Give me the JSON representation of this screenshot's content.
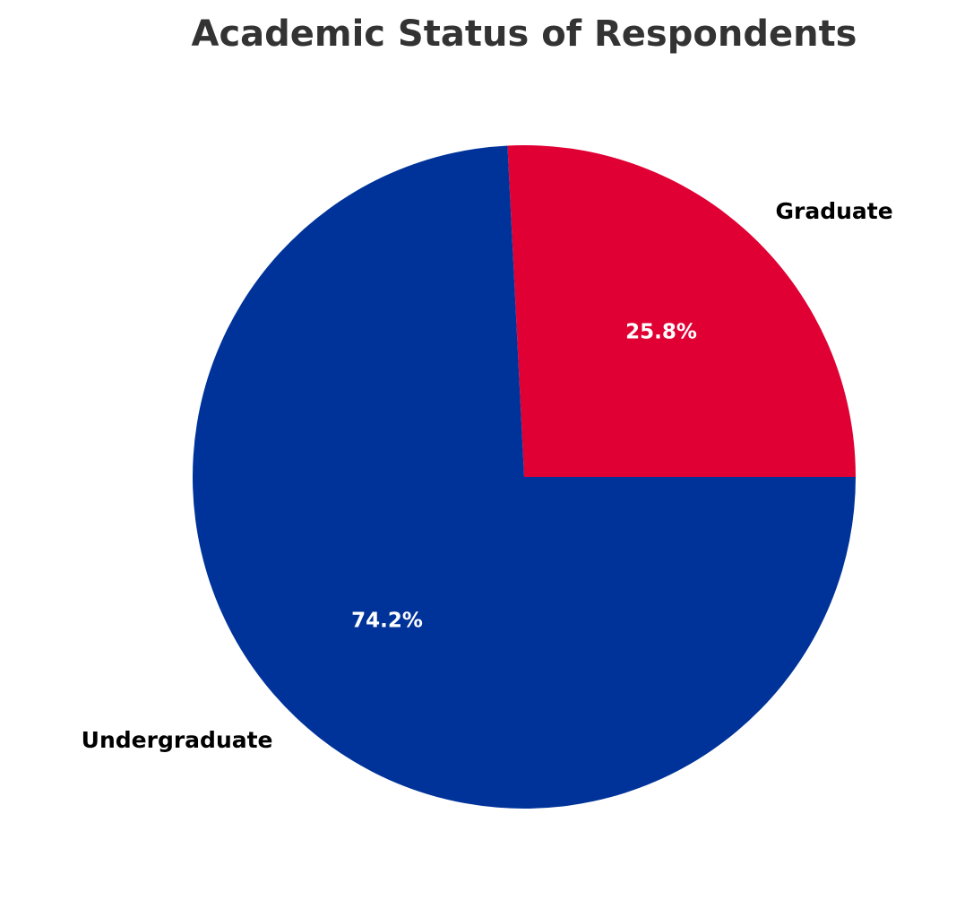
{
  "chart_data": {
    "type": "pie",
    "title": "Academic Status of Respondents",
    "categories": [
      "Graduate",
      "Undergraduate"
    ],
    "values": [
      25.8,
      74.2
    ],
    "value_labels": [
      "25.8%",
      "74.2%"
    ],
    "colors": [
      "#e00034",
      "#003399"
    ]
  }
}
